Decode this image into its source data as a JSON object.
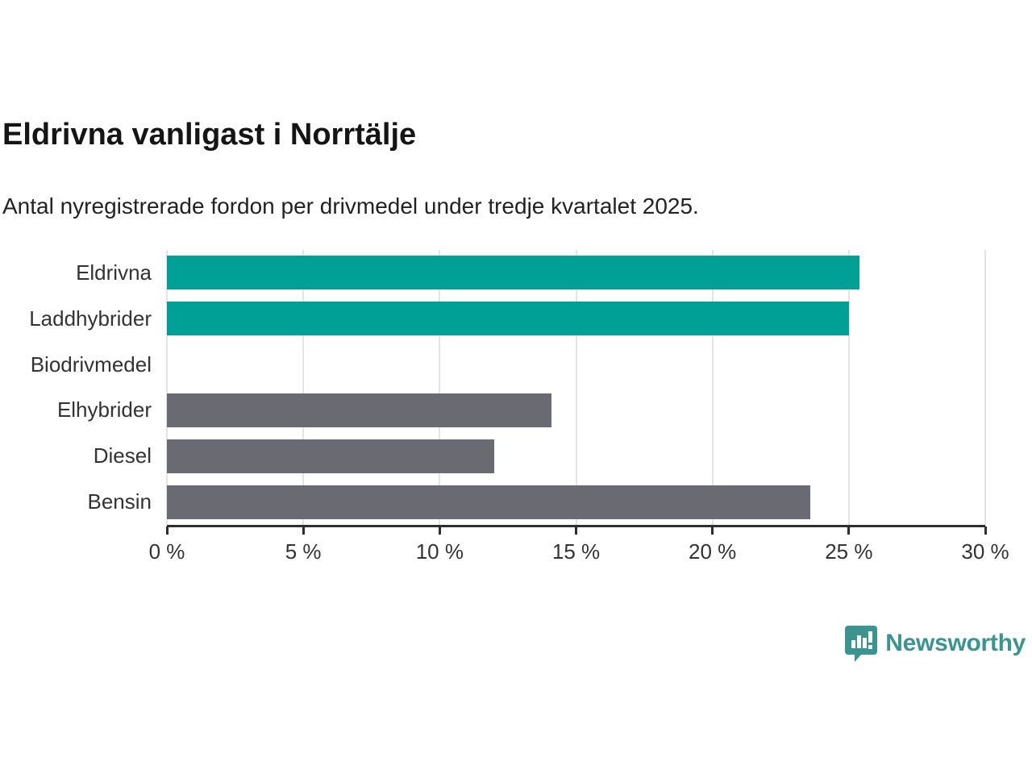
{
  "title": "Eldrivna vanligast i Norrtälje",
  "subtitle": "Antal nyregistrerade fordon per drivmedel under tredje kvartalet 2025.",
  "chart_data": {
    "type": "bar",
    "orientation": "horizontal",
    "title": "Eldrivna vanligast i Norrtälje",
    "subtitle": "Antal nyregistrerade fordon per drivmedel under tredje kvartalet 2025.",
    "categories": [
      "Eldrivna",
      "Laddhybrider",
      "Biodrivmedel",
      "Elhybrider",
      "Diesel",
      "Bensin"
    ],
    "values": [
      25.4,
      25.0,
      0,
      14.1,
      12.0,
      23.6
    ],
    "unit": "%",
    "xlim": [
      0,
      30
    ],
    "xticks": [
      0,
      5,
      10,
      15,
      20,
      25,
      30
    ],
    "xtick_labels": [
      "0 %",
      "5 %",
      "10 %",
      "15 %",
      "20 %",
      "25 %",
      "30 %"
    ],
    "bar_colors": [
      "#00A096",
      "#00A096",
      "#6A6A72",
      "#6A6A72",
      "#6A6A72",
      "#6A6A72"
    ],
    "highlight_color": "#00A096",
    "default_color": "#6A6A72",
    "grid": true,
    "gridline_color": "#E4E4E4",
    "axis_color": "#2E2E2E",
    "legend": "none"
  },
  "footer": {
    "brand": "Newsworthy",
    "brand_color": "#3B948F",
    "logo": "newsworthy-speech-bubble-bars-icon"
  }
}
